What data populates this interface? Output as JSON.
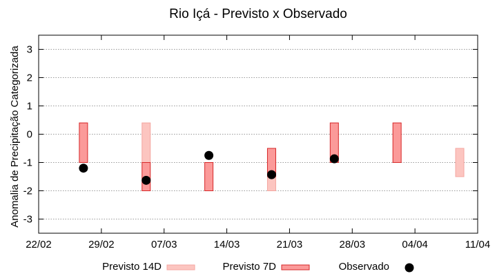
{
  "chart_data": {
    "type": "range-bar",
    "title": "Rio Içá - Previsto x Observado",
    "xlabel": "",
    "ylabel": "Anomalia de Precipitação Categorizada",
    "x_tick_labels": [
      "22/02",
      "29/02",
      "07/03",
      "14/03",
      "21/03",
      "28/03",
      "04/04",
      "11/04"
    ],
    "x_ticks_dates": [
      "2024-02-22",
      "2024-02-29",
      "2024-03-07",
      "2024-03-14",
      "2024-03-21",
      "2024-03-28",
      "2024-04-04",
      "2024-04-11"
    ],
    "xlim": [
      "2024-02-22",
      "2024-04-11"
    ],
    "ylim": [
      -3.5,
      3.5
    ],
    "y_ticks": [
      -3,
      -2,
      -1,
      0,
      1,
      2,
      3
    ],
    "grid": true,
    "legend_position": "bottom",
    "colors": {
      "forecast_14d_fill": "#fcc5c0",
      "forecast_14d_stroke": "#f4a6a0",
      "forecast_7d_fill": "#fb9a99",
      "forecast_7d_stroke": "#d62728",
      "observed": "#000000",
      "grid": "#999999"
    },
    "series": [
      {
        "name": "Previsto 14D",
        "kind": "range",
        "points": [
          {
            "x": "2024-03-05",
            "low": -1.0,
            "high": 0.4
          },
          {
            "x": "2024-03-19",
            "low": -2.0,
            "high": -0.5
          },
          {
            "x": "2024-04-09",
            "low": -1.5,
            "high": -0.5
          }
        ]
      },
      {
        "name": "Previsto 7D",
        "kind": "range",
        "points": [
          {
            "x": "2024-02-27",
            "low": -1.0,
            "high": 0.4
          },
          {
            "x": "2024-03-05",
            "low": -2.0,
            "high": -1.0
          },
          {
            "x": "2024-03-12",
            "low": -2.0,
            "high": -1.0
          },
          {
            "x": "2024-03-19",
            "low": -1.5,
            "high": -0.5
          },
          {
            "x": "2024-03-26",
            "low": -1.0,
            "high": 0.4
          },
          {
            "x": "2024-04-02",
            "low": -1.0,
            "high": 0.4
          }
        ]
      },
      {
        "name": "Observado",
        "kind": "point",
        "points": [
          {
            "x": "2024-02-27",
            "y": -1.2
          },
          {
            "x": "2024-03-05",
            "y": -1.63
          },
          {
            "x": "2024-03-12",
            "y": -0.75
          },
          {
            "x": "2024-03-19",
            "y": -1.43
          },
          {
            "x": "2024-03-26",
            "y": -0.87
          }
        ]
      }
    ],
    "legend": [
      {
        "label": "Previsto 14D",
        "series": "Previsto 14D"
      },
      {
        "label": "Previsto 7D",
        "series": "Previsto 7D"
      },
      {
        "label": "Observado",
        "series": "Observado"
      }
    ]
  }
}
